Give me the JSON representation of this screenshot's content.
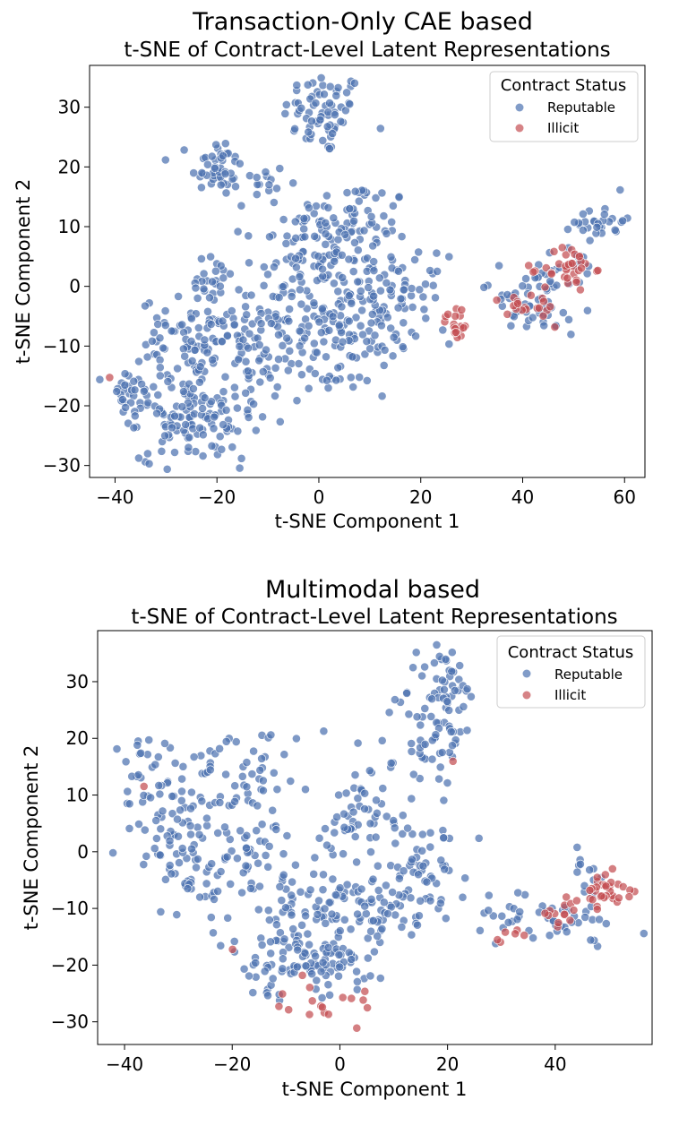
{
  "colors": {
    "reputable": "#4c72b0",
    "illicit": "#c44e52"
  },
  "chart_data": [
    {
      "type": "scatter",
      "title": "Transaction-Only CAE based",
      "subtitle": "t-SNE of Contract-Level Latent Representations",
      "xlabel": "t-SNE Component 1",
      "ylabel": "t-SNE Component 2",
      "xlim": [
        -45,
        64
      ],
      "ylim": [
        -32,
        37
      ],
      "xticks": [
        -40,
        -20,
        0,
        20,
        40,
        60
      ],
      "yticks": [
        -30,
        -20,
        -10,
        0,
        10,
        20,
        30
      ],
      "xtick_labels": [
        "−40",
        "−20",
        "0",
        "20",
        "40",
        "60"
      ],
      "ytick_labels": [
        "−30",
        "−20",
        "−10",
        "0",
        "10",
        "20",
        "30"
      ],
      "legend": {
        "title": "Contract Status",
        "position": "top-right",
        "entries": [
          "Reputable",
          "Illicit"
        ]
      },
      "series": [
        {
          "name": "Reputable",
          "clusters": [
            {
              "cx": 1,
              "cy": 29,
              "sx": 4,
              "sy": 3.5,
              "n": 70
            },
            {
              "cx": -20,
              "cy": 20,
              "sx": 2.5,
              "sy": 2.5,
              "n": 45
            },
            {
              "cx": -12,
              "cy": 17,
              "sx": 3,
              "sy": 2,
              "n": 15
            },
            {
              "cx": 6,
              "cy": 10,
              "sx": 6,
              "sy": 4,
              "n": 90
            },
            {
              "cx": -5,
              "cy": 5,
              "sx": 5,
              "sy": 3.5,
              "n": 45
            },
            {
              "cx": 6,
              "cy": -4,
              "sx": 7,
              "sy": 5,
              "n": 150
            },
            {
              "cx": 18,
              "cy": -1,
              "sx": 3.5,
              "sy": 3,
              "n": 30
            },
            {
              "cx": 6,
              "cy": -13,
              "sx": 4,
              "sy": 2.5,
              "n": 25
            },
            {
              "cx": -21,
              "cy": 0,
              "sx": 3,
              "sy": 2.5,
              "n": 25
            },
            {
              "cx": -25,
              "cy": -9,
              "sx": 5,
              "sy": 3.5,
              "n": 80
            },
            {
              "cx": -11,
              "cy": -6,
              "sx": 5,
              "sy": 4,
              "n": 50
            },
            {
              "cx": -13,
              "cy": -15,
              "sx": 5,
              "sy": 4,
              "n": 55
            },
            {
              "cx": -37,
              "cy": -19,
              "sx": 2.5,
              "sy": 3,
              "n": 35
            },
            {
              "cx": -27,
              "cy": -22,
              "sx": 4,
              "sy": 3.5,
              "n": 80
            },
            {
              "cx": -19,
              "cy": -24,
              "sx": 3,
              "sy": 3,
              "n": 30
            },
            {
              "cx": 43,
              "cy": 1,
              "sx": 3,
              "sy": 2.5,
              "n": 20
            },
            {
              "cx": 38,
              "cy": -2,
              "sx": 3,
              "sy": 1.8,
              "n": 20
            },
            {
              "cx": 45,
              "cy": -5,
              "sx": 3.5,
              "sy": 1.5,
              "n": 20
            },
            {
              "cx": 55,
              "cy": 11,
              "sx": 2.5,
              "sy": 1.5,
              "n": 30
            },
            {
              "cx": 51,
              "cy": 3,
              "sx": 2.5,
              "sy": 2,
              "n": 12
            }
          ]
        },
        {
          "name": "Illicit",
          "clusters": [
            {
              "cx": 27,
              "cy": -6,
              "sx": 1.3,
              "sy": 1.5,
              "n": 20
            },
            {
              "cx": 49,
              "cy": 3,
              "sx": 2.5,
              "sy": 2,
              "n": 35
            },
            {
              "cx": 42,
              "cy": -4,
              "sx": 3,
              "sy": 1.5,
              "n": 15
            },
            {
              "cx": 37,
              "cy": -3,
              "sx": 1.5,
              "sy": 1,
              "n": 5
            },
            {
              "cx": -41,
              "cy": -15,
              "sx": 0.3,
              "sy": 0.3,
              "n": 1
            }
          ]
        }
      ]
    },
    {
      "type": "scatter",
      "title": "Multimodal based",
      "subtitle": "t-SNE of Contract-Level Latent Representations",
      "xlabel": "t-SNE Component 1",
      "ylabel": "t-SNE Component 2",
      "xlim": [
        -45,
        58
      ],
      "ylim": [
        -34,
        39
      ],
      "xticks": [
        -40,
        -20,
        0,
        20,
        40
      ],
      "yticks": [
        -30,
        -20,
        -10,
        0,
        10,
        20,
        30
      ],
      "xtick_labels": [
        "−40",
        "−20",
        "0",
        "20",
        "40"
      ],
      "ytick_labels": [
        "−30",
        "−20",
        "−10",
        "0",
        "10",
        "20",
        "30"
      ],
      "legend": {
        "title": "Contract Status",
        "position": "top-right",
        "entries": [
          "Reputable",
          "Illicit"
        ]
      },
      "series": [
        {
          "name": "Reputable",
          "clusters": [
            {
              "cx": 19,
              "cy": 30,
              "sx": 2.5,
              "sy": 3.5,
              "n": 45
            },
            {
              "cx": 17,
              "cy": 20,
              "sx": 4,
              "sy": 4,
              "n": 50
            },
            {
              "cx": 5,
              "cy": 10,
              "sx": 4,
              "sy": 4,
              "n": 35
            },
            {
              "cx": -36,
              "cy": 13,
              "sx": 3,
              "sy": 4,
              "n": 30
            },
            {
              "cx": -27,
              "cy": 12,
              "sx": 3,
              "sy": 3,
              "n": 25
            },
            {
              "cx": -18,
              "cy": 13,
              "sx": 4,
              "sy": 5,
              "n": 45
            },
            {
              "cx": -32,
              "cy": 2,
              "sx": 4,
              "sy": 4,
              "n": 45
            },
            {
              "cx": -24,
              "cy": -6,
              "sx": 4,
              "sy": 3,
              "n": 30
            },
            {
              "cx": -15,
              "cy": 0,
              "sx": 4,
              "sy": 4,
              "n": 40
            },
            {
              "cx": 15,
              "cy": -3,
              "sx": 4,
              "sy": 5,
              "n": 60
            },
            {
              "cx": 8,
              "cy": -10,
              "sx": 4,
              "sy": 3,
              "n": 35
            },
            {
              "cx": 0,
              "cy": -8,
              "sx": 5,
              "sy": 4,
              "n": 40
            },
            {
              "cx": -8,
              "cy": -13,
              "sx": 5,
              "sy": 4,
              "n": 50
            },
            {
              "cx": -2,
              "cy": -20,
              "sx": 5,
              "sy": 3.5,
              "n": 60
            },
            {
              "cx": -12,
              "cy": -21,
              "sx": 4,
              "sy": 3,
              "n": 30
            },
            {
              "cx": 0,
              "cy": 3,
              "sx": 3,
              "sy": 3,
              "n": 20
            },
            {
              "cx": 40,
              "cy": -12,
              "sx": 6,
              "sy": 2,
              "n": 40
            },
            {
              "cx": 47,
              "cy": -3,
              "sx": 2,
              "sy": 2.5,
              "n": 12
            },
            {
              "cx": 32,
              "cy": -11,
              "sx": 3,
              "sy": 2,
              "n": 10
            }
          ]
        },
        {
          "name": "Illicit",
          "clusters": [
            {
              "cx": 50,
              "cy": -7,
              "sx": 2,
              "sy": 1.5,
              "n": 30
            },
            {
              "cx": 42,
              "cy": -11,
              "sx": 2.5,
              "sy": 1.5,
              "n": 15
            },
            {
              "cx": 32,
              "cy": -14,
              "sx": 1.5,
              "sy": 1,
              "n": 6
            },
            {
              "cx": -2,
              "cy": -28,
              "sx": 2.5,
              "sy": 1.5,
              "n": 8
            },
            {
              "cx": 4,
              "cy": -26,
              "sx": 1.5,
              "sy": 1,
              "n": 5
            },
            {
              "cx": -10,
              "cy": -25,
              "sx": 2,
              "sy": 2,
              "n": 4
            },
            {
              "cx": -20,
              "cy": -17,
              "sx": 0.4,
              "sy": 0.4,
              "n": 1
            },
            {
              "cx": -36,
              "cy": 11,
              "sx": 0.5,
              "sy": 0.5,
              "n": 1
            },
            {
              "cx": 21,
              "cy": 16,
              "sx": 0.4,
              "sy": 0.4,
              "n": 1
            }
          ]
        }
      ]
    }
  ]
}
